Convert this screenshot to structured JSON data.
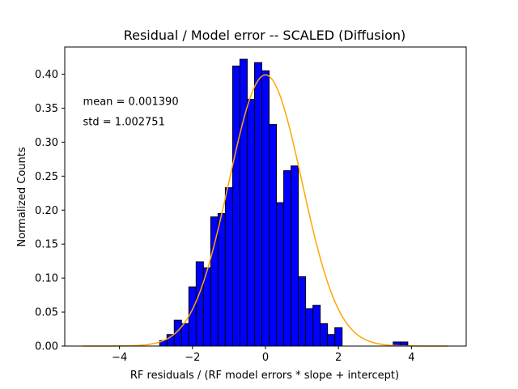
{
  "chart_data": {
    "type": "bar",
    "title": "Residual / Model error -- SCALED (Diffusion)",
    "xlabel": "RF residuals / (RF model errors * slope + intercept)",
    "ylabel": "Normalized Counts",
    "xlim": [
      -5.5,
      5.5
    ],
    "ylim": [
      0,
      0.44
    ],
    "xticks": [
      -4,
      -2,
      0,
      2,
      4
    ],
    "xtick_labels": [
      "−4",
      "−2",
      "0",
      "2",
      "4"
    ],
    "yticks": [
      0,
      0.05,
      0.1,
      0.15,
      0.2,
      0.25,
      0.3,
      0.35,
      0.4
    ],
    "ytick_labels": [
      "0.00",
      "0.05",
      "0.10",
      "0.15",
      "0.20",
      "0.25",
      "0.30",
      "0.35",
      "0.40"
    ],
    "grid": false,
    "bin_width": 0.2,
    "histogram": {
      "bin_lefts": [
        -2.9,
        -2.7,
        -2.5,
        -2.3,
        -2.1,
        -1.9,
        -1.7,
        -1.5,
        -1.3,
        -1.1,
        -0.9,
        -0.7,
        -0.5,
        -0.3,
        -0.1,
        0.1,
        0.3,
        0.5,
        0.7,
        0.9,
        1.1,
        1.3,
        1.5,
        1.7,
        1.9,
        2.1,
        2.3,
        2.5,
        2.7,
        2.9,
        3.1,
        3.3,
        3.5,
        3.7
      ],
      "values": [
        0.008,
        0.017,
        0.038,
        0.033,
        0.087,
        0.124,
        0.115,
        0.19,
        0.195,
        0.233,
        0.412,
        0.422,
        0.363,
        0.417,
        0.405,
        0.326,
        0.211,
        0.258,
        0.265,
        0.102,
        0.055,
        0.06,
        0.033,
        0.017,
        0.027,
        0,
        0,
        0,
        0,
        0,
        0,
        0,
        0.006,
        0.006
      ],
      "color": "#0000ff",
      "edgecolor": "#000000"
    },
    "fit_curve": {
      "type": "normal-pdf",
      "mean": 0,
      "std": 1,
      "x_range": [
        -5,
        5
      ],
      "color": "#ffa500"
    },
    "annotations": [
      {
        "text": "mean = 0.001390",
        "x": -5,
        "y": 0.355
      },
      {
        "text": "std = 1.002751",
        "x": -5,
        "y": 0.325
      }
    ]
  }
}
